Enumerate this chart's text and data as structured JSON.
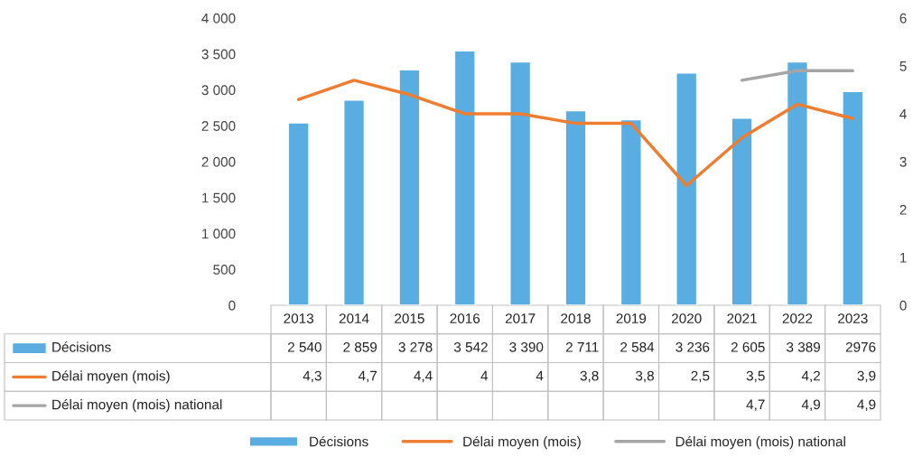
{
  "chart_data": {
    "type": "bar",
    "categories": [
      "2013",
      "2014",
      "2015",
      "2016",
      "2017",
      "2018",
      "2019",
      "2020",
      "2021",
      "2022",
      "2023"
    ],
    "series": [
      {
        "name": "Décisions",
        "color": "#5aade0",
        "values": [
          2540,
          2859,
          3278,
          3542,
          3390,
          2711,
          2584,
          3236,
          2605,
          3389,
          2976
        ],
        "value_labels": [
          "2 540",
          "2 859",
          "3 278",
          "3 542",
          "3 390",
          "2 711",
          "2 584",
          "3 236",
          "2 605",
          "3 389",
          "2976"
        ]
      },
      {
        "name": "Délai moyen (mois)",
        "type": "line",
        "axis": "y2",
        "color": "#ed7d31",
        "values": [
          4.3,
          4.7,
          4.4,
          4,
          4,
          3.8,
          3.8,
          2.5,
          3.5,
          4.2,
          3.9
        ],
        "value_labels": [
          "4,3",
          "4,7",
          "4,4",
          "4",
          "4",
          "3,8",
          "3,8",
          "2,5",
          "3,5",
          "4,2",
          "3,9"
        ]
      },
      {
        "name": "Délai moyen (mois) national",
        "type": "line",
        "axis": "y2",
        "color": "#a5a5a5",
        "values": [
          null,
          null,
          null,
          null,
          null,
          null,
          null,
          null,
          4.7,
          4.9,
          4.9
        ],
        "value_labels": [
          null,
          null,
          null,
          null,
          null,
          null,
          null,
          null,
          "4,7",
          "4,9",
          "4,9"
        ]
      }
    ],
    "ylim": [
      0,
      4000
    ],
    "yticks": [
      0,
      {
        "value": 500,
        "label": "500"
      },
      {
        "value": 1000,
        "label": "1 000"
      },
      {
        "value": 1500,
        "label": "1 500"
      },
      {
        "value": 2000,
        "label": "2 000"
      },
      {
        "value": 2500,
        "label": "2 500"
      },
      {
        "value": 3000,
        "label": "3 000"
      },
      {
        "value": 3500,
        "label": "3 500"
      },
      {
        "value": 4000,
        "label": "4 000"
      }
    ],
    "y2lim": [
      0,
      6
    ],
    "y2ticks": [
      0,
      1,
      2,
      3,
      4,
      5,
      6
    ],
    "grid": false,
    "legend": "bottom"
  }
}
